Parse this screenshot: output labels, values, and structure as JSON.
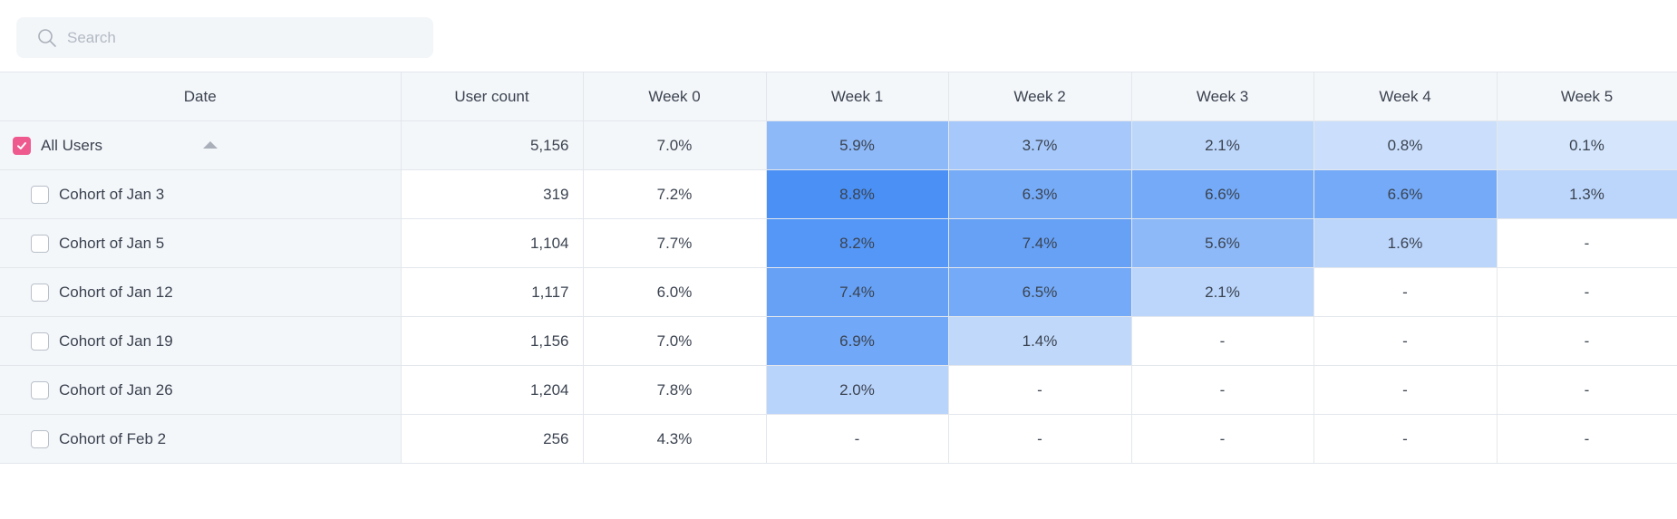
{
  "search": {
    "placeholder": "Search",
    "value": ""
  },
  "table": {
    "columns": [
      "Date",
      "User count",
      "Week 0",
      "Week 1",
      "Week 2",
      "Week 3",
      "Week 4",
      "Week 5"
    ],
    "all_users": {
      "label": "All Users",
      "checked": true,
      "user_count": "5,156",
      "weeks": [
        "7.0%",
        "5.9%",
        "3.7%",
        "2.1%",
        "0.8%",
        "0.1%"
      ],
      "intensity": [
        null,
        0.52,
        0.34,
        0.17,
        0.07,
        0.01
      ]
    },
    "cohorts": [
      {
        "label": "Cohort of Jan 3",
        "checked": false,
        "user_count": "319",
        "weeks": [
          "7.2%",
          "8.8%",
          "6.3%",
          "6.6%",
          "6.6%",
          "1.3%"
        ],
        "intensity": [
          null,
          1.0,
          0.68,
          0.7,
          0.7,
          0.18
        ]
      },
      {
        "label": "Cohort of Jan 5",
        "checked": false,
        "user_count": "1,104",
        "weeks": [
          "7.7%",
          "8.2%",
          "7.4%",
          "5.6%",
          "1.6%",
          "-"
        ],
        "intensity": [
          null,
          0.92,
          0.8,
          0.52,
          0.19,
          null
        ]
      },
      {
        "label": "Cohort of Jan 12",
        "checked": false,
        "user_count": "1,117",
        "weeks": [
          "6.0%",
          "7.4%",
          "6.5%",
          "2.1%",
          "-",
          "-"
        ],
        "intensity": [
          null,
          0.8,
          0.7,
          0.19,
          null,
          null
        ]
      },
      {
        "label": "Cohort of Jan 19",
        "checked": false,
        "user_count": "1,156",
        "weeks": [
          "7.0%",
          "6.9%",
          "1.4%",
          "-",
          "-",
          "-"
        ],
        "intensity": [
          null,
          0.72,
          0.15,
          null,
          null,
          null
        ]
      },
      {
        "label": "Cohort of Jan 26",
        "checked": false,
        "user_count": "1,204",
        "weeks": [
          "7.8%",
          "2.0%",
          "-",
          "-",
          "-",
          "-"
        ],
        "intensity": [
          null,
          0.2,
          null,
          null,
          null,
          null
        ]
      },
      {
        "label": "Cohort of Feb 2",
        "checked": false,
        "user_count": "256",
        "weeks": [
          "4.3%",
          "-",
          "-",
          "-",
          "-",
          "-"
        ],
        "intensity": [
          null,
          null,
          null,
          null,
          null,
          null
        ]
      }
    ]
  },
  "colors": {
    "heat_base": "#4a90f5",
    "checkbox_checked": "#ef5a8e",
    "header_bg": "#f4f7fa",
    "border": "#e3e7ec"
  }
}
